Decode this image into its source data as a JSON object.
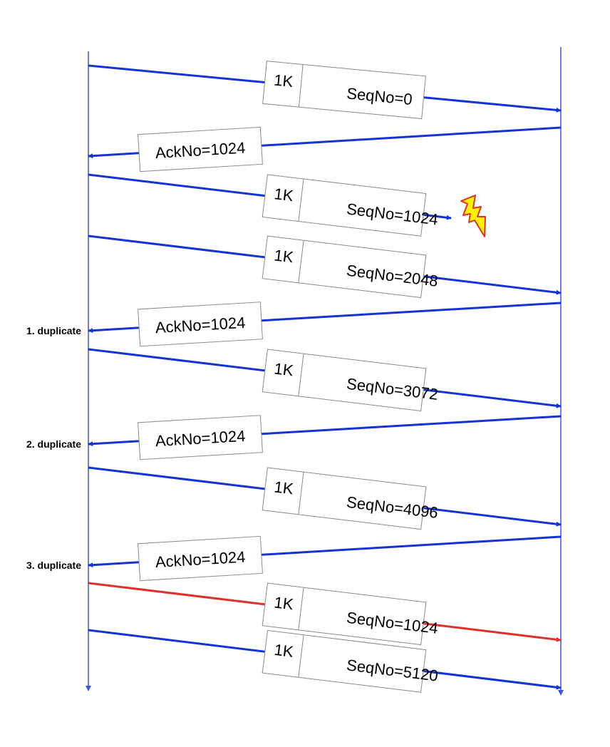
{
  "colors": {
    "blue": "#1433d6",
    "red": "#e0302a",
    "timeline": "#3a55e6",
    "box_border": "#8a8a8a",
    "bolt_fill": "#fff200",
    "bolt_stroke": "#e0302a"
  },
  "messages": [
    {
      "dir": "out",
      "size": "1K",
      "label": "SeqNo=0"
    },
    {
      "dir": "in",
      "label": "AckNo=1024"
    },
    {
      "dir": "out",
      "size": "1K",
      "label": "SeqNo=1024",
      "lost": true
    },
    {
      "dir": "out",
      "size": "1K",
      "label": "SeqNo=2048"
    },
    {
      "dir": "in",
      "label": "AckNo=1024",
      "note": "1.  duplicate"
    },
    {
      "dir": "out",
      "size": "1K",
      "label": "SeqNo=3072"
    },
    {
      "dir": "in",
      "label": "AckNo=1024",
      "note": "2. duplicate"
    },
    {
      "dir": "out",
      "size": "1K",
      "label": "SeqNo=4096"
    },
    {
      "dir": "in",
      "label": "AckNo=1024",
      "note": "3. duplicate"
    },
    {
      "dir": "out",
      "size": "1K",
      "label": "SeqNo=1024",
      "retransmit": true
    },
    {
      "dir": "out",
      "size": "1K",
      "label": "SeqNo=5120"
    }
  ],
  "loss_icon": "lightning-bolt-icon"
}
